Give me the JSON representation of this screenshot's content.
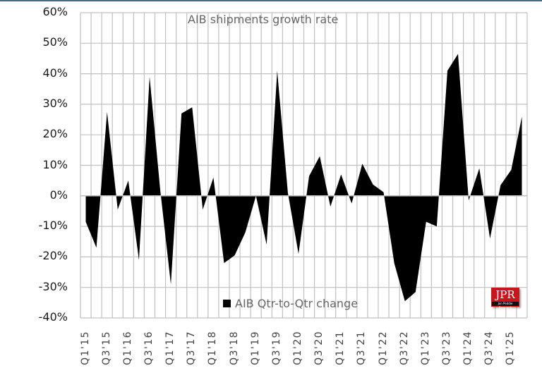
{
  "chart_data": {
    "type": "area",
    "title": "AIB shipments growth rate",
    "xlabel": "",
    "ylabel": "",
    "ylim": [
      -0.4,
      0.6
    ],
    "yticks": [
      "60%",
      "50%",
      "40%",
      "30%",
      "20%",
      "10%",
      "0%",
      "-10%",
      "-20%",
      "-30%",
      "-40%"
    ],
    "grid": true,
    "legend_position": "bottom-center-inside",
    "x": [
      "Q1'15",
      "Q2'15",
      "Q3'15",
      "Q4'15",
      "Q1'16",
      "Q2'16",
      "Q3'16",
      "Q4'16",
      "Q1'17",
      "Q2'17",
      "Q3'17",
      "Q4'17",
      "Q1'18",
      "Q2'18",
      "Q3'18",
      "Q4'18",
      "Q1'19",
      "Q2'19",
      "Q3'19",
      "Q4'19",
      "Q1'20",
      "Q2'20",
      "Q3'20",
      "Q4'20",
      "Q1'21",
      "Q2'21",
      "Q3'21",
      "Q4'21",
      "Q1'22",
      "Q2'22",
      "Q3'22",
      "Q4'22",
      "Q1'23",
      "Q2'23",
      "Q3'23",
      "Q4'23",
      "Q1'24",
      "Q2'24",
      "Q3'24",
      "Q4'24",
      "Q1'25",
      "Q2'25"
    ],
    "xtick_labels": [
      "Q1'15",
      "Q3'15",
      "Q1'16",
      "Q3'16",
      "Q1'17",
      "Q3'17",
      "Q1'18",
      "Q3'18",
      "Q1'19",
      "Q3'19",
      "Q1'20",
      "Q3'20",
      "Q1'21",
      "Q3'21",
      "Q1'22",
      "Q3'22",
      "Q1'23",
      "Q3'23",
      "Q1'24",
      "Q3'24",
      "Q1'25"
    ],
    "series": [
      {
        "name": "AIB Qtr-to-Qtr change",
        "color": "#000000",
        "values": [
          -0.085,
          -0.17,
          0.275,
          -0.045,
          0.05,
          -0.21,
          0.39,
          0.02,
          -0.29,
          0.27,
          0.29,
          -0.045,
          0.06,
          -0.22,
          -0.195,
          -0.12,
          0.0,
          -0.16,
          0.41,
          0.01,
          -0.19,
          0.065,
          0.13,
          -0.035,
          0.07,
          -0.025,
          0.105,
          0.037,
          0.012,
          -0.22,
          -0.345,
          -0.315,
          -0.085,
          -0.1,
          0.41,
          0.465,
          -0.015,
          0.09,
          -0.14,
          0.035,
          0.085,
          0.26
        ]
      }
    ],
    "annotations": [
      "JPR logo (Jon Peddie Research)"
    ]
  },
  "title": "AIB shipments growth rate",
  "legend": {
    "label": "AIB Qtr-to-Qtr change"
  },
  "logo": {
    "text": "JPR",
    "subtext": "Jon Peddie Research"
  },
  "colors": {
    "series": "#000000",
    "grid": "#c0c0c0",
    "frame_top": "#3f6f80",
    "logo_red": "#c8161d"
  }
}
